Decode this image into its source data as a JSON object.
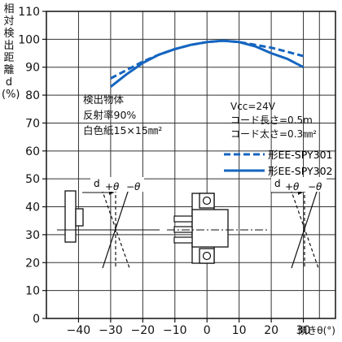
{
  "chart_data": {
    "type": "line",
    "ylabel_chars": [
      "相",
      "対",
      "検",
      "出",
      "距",
      "離",
      "d",
      "(%)"
    ],
    "xlabel": "傾きθ(°)",
    "xlim": [
      -50,
      40
    ],
    "ylim": [
      0,
      110
    ],
    "xticks": [
      "−40",
      "−30",
      "−20",
      "−10",
      "0",
      "10",
      "20",
      "30"
    ],
    "xtick_values": [
      -40,
      -30,
      -20,
      -10,
      0,
      10,
      20,
      30
    ],
    "yticks": [
      "0",
      "10",
      "20",
      "30",
      "40",
      "50",
      "60",
      "70",
      "80",
      "90",
      "100",
      "110"
    ],
    "ytick_values": [
      0,
      10,
      20,
      30,
      40,
      50,
      60,
      70,
      80,
      90,
      100,
      110
    ],
    "grid": true,
    "series": [
      {
        "name": "形EE-SPY301",
        "style": "dashed",
        "x": [
          -30,
          -25,
          -20,
          -15,
          -10,
          -5,
          0,
          5,
          10,
          15,
          20,
          25,
          30
        ],
        "y": [
          86,
          89,
          92,
          94.5,
          96.5,
          98,
          99,
          99.5,
          99,
          98,
          97,
          95.5,
          94
        ]
      },
      {
        "name": "形EE-SPY302",
        "style": "solid",
        "x": [
          -30,
          -25,
          -20,
          -15,
          -10,
          -5,
          0,
          5,
          10,
          15,
          20,
          25,
          30
        ],
        "y": [
          83,
          87.5,
          91.5,
          94.5,
          96.5,
          98,
          99,
          99.5,
          99,
          97.5,
          95,
          93,
          90
        ]
      }
    ],
    "annotations": {
      "object": [
        "検出物体",
        "反射率90%",
        "白色紙15×15㎜²"
      ],
      "conditions": [
        "Vcc=24V",
        "コード長さ=0.5m",
        "コード太さ=0.3㎜²"
      ],
      "diagram_labels": [
        "d",
        "+θ",
        "−θ",
        "d",
        "+θ",
        "−θ"
      ]
    },
    "colors": {
      "line": "#1565c0",
      "axis": "#111111",
      "grid": "#333333"
    }
  }
}
